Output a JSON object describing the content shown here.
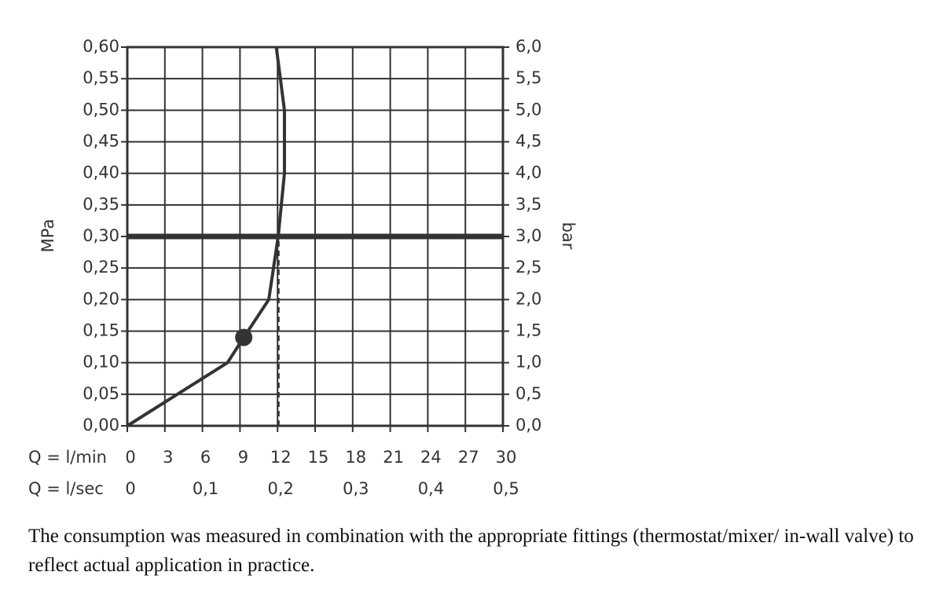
{
  "chart_data": {
    "type": "line",
    "x": [
      0,
      8,
      9.3,
      11.3,
      12.05,
      12.55,
      12.55,
      11.9
    ],
    "values": [
      0,
      0.1,
      0.14,
      0.2,
      0.3,
      0.4,
      0.5,
      0.6
    ],
    "color": "#333333",
    "xlabel": "Q = l/min",
    "x2label": "Q = l/sec",
    "ylabel": "MPa",
    "y2label": "bar",
    "xlim": [
      0,
      30
    ],
    "xticks": [
      0,
      3,
      6,
      9,
      12,
      15,
      18,
      21,
      24,
      27,
      30
    ],
    "x2lim": [
      0,
      0.5
    ],
    "x2ticks": [
      0,
      {
        "value": 0.1,
        "label": "0,1"
      },
      {
        "value": 0.2,
        "label": "0,2"
      },
      {
        "value": 0.3,
        "label": "0,3"
      },
      {
        "value": 0.4,
        "label": "0,4"
      },
      {
        "value": 0.5,
        "label": "0,5"
      }
    ],
    "ylim": [
      0,
      0.6
    ],
    "yticks": [
      {
        "value": 0,
        "label": "0,00"
      },
      {
        "value": 0.05,
        "label": "0,05"
      },
      {
        "value": 0.1,
        "label": "0,10"
      },
      {
        "value": 0.15,
        "label": "0,15"
      },
      {
        "value": 0.2,
        "label": "0,20"
      },
      {
        "value": 0.25,
        "label": "0,25"
      },
      {
        "value": 0.3,
        "label": "0,30"
      },
      {
        "value": 0.35,
        "label": "0,35"
      },
      {
        "value": 0.4,
        "label": "0,40"
      },
      {
        "value": 0.45,
        "label": "0,45"
      },
      {
        "value": 0.5,
        "label": "0,50"
      },
      {
        "value": 0.55,
        "label": "0,55"
      },
      {
        "value": 0.6,
        "label": "0,60"
      }
    ],
    "y2lim": [
      0,
      6
    ],
    "y2ticks": [
      {
        "value": 0,
        "label": "0,0"
      },
      {
        "value": 0.5,
        "label": "0,5"
      },
      {
        "value": 1,
        "label": "1,0"
      },
      {
        "value": 1.5,
        "label": "1,5"
      },
      {
        "value": 2,
        "label": "2,0"
      },
      {
        "value": 2.5,
        "label": "2,5"
      },
      {
        "value": 3,
        "label": "3,0"
      },
      {
        "value": 3.5,
        "label": "3,5"
      },
      {
        "value": 4,
        "label": "4,0"
      },
      {
        "value": 4.5,
        "label": "4,5"
      },
      {
        "value": 5,
        "label": "5,0"
      },
      {
        "value": 5.5,
        "label": "5,5"
      },
      {
        "value": 6,
        "label": "6,0"
      }
    ],
    "grid": true,
    "reference_line": 0.3,
    "dashed_x": 12.1,
    "marker": {
      "x": 9.3,
      "y": 0.14
    },
    "caption": "The consumption was measured in combination with the appropriate fittings (thermostat/mixer/ in-wall valve) to reflect actual application in practice."
  }
}
